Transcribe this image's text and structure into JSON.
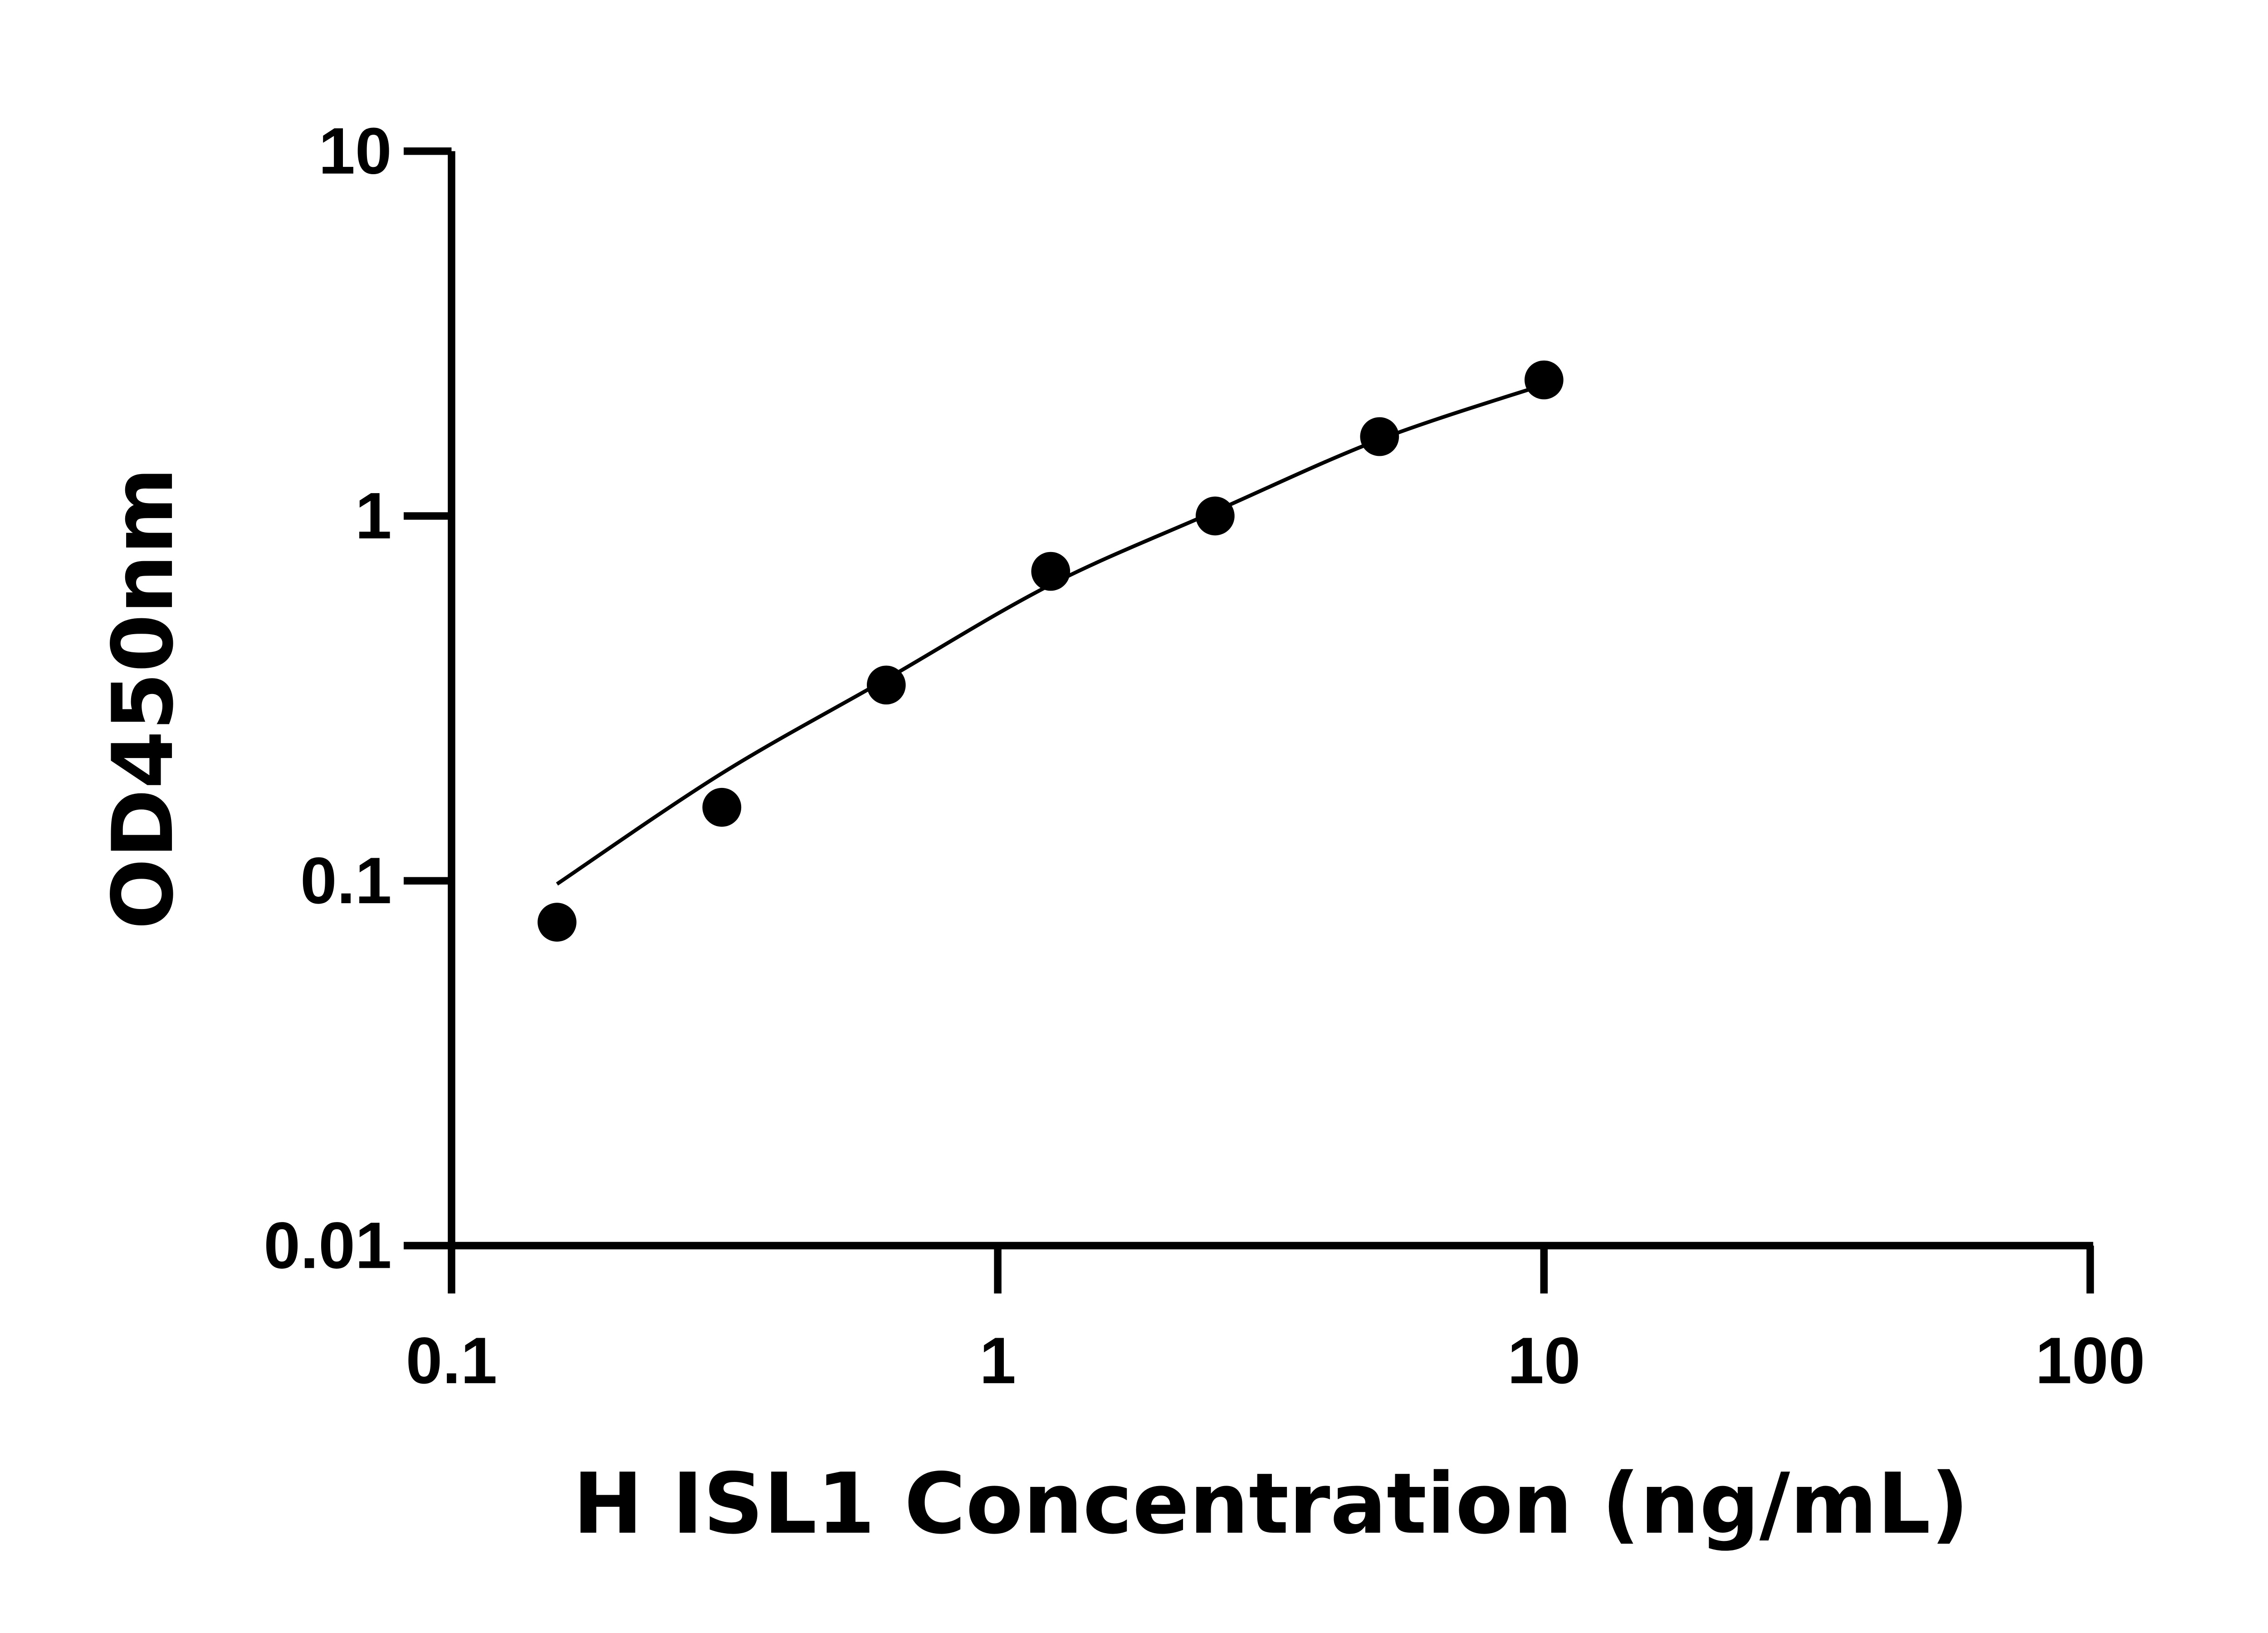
{
  "chart_data": {
    "type": "scatter",
    "title": "",
    "xlabel": "H ISL1 Concentration (ng/mL)",
    "ylabel": "OD450nm",
    "xscale": "log",
    "yscale": "log",
    "xlim": [
      0.1,
      100
    ],
    "ylim": [
      0.01,
      10
    ],
    "xticks": [
      "0.1",
      "1",
      "10",
      "100"
    ],
    "yticks": [
      "0.01",
      "0.1",
      "1",
      "10"
    ],
    "grid": false,
    "points": {
      "x": [
        0.156,
        0.3125,
        0.625,
        1.25,
        2.5,
        5,
        10
      ],
      "y": [
        0.077,
        0.159,
        0.344,
        0.705,
        1.0,
        1.65,
        2.36
      ]
    },
    "fit_curve": {
      "x": [
        0.156,
        0.3125,
        0.625,
        1.25,
        2.5,
        5,
        10
      ],
      "y": [
        0.098,
        0.197,
        0.357,
        0.648,
        1.03,
        1.62,
        2.29
      ]
    },
    "colors": {
      "marker": "#000000",
      "line": "#000000",
      "axes": "#000000"
    }
  }
}
